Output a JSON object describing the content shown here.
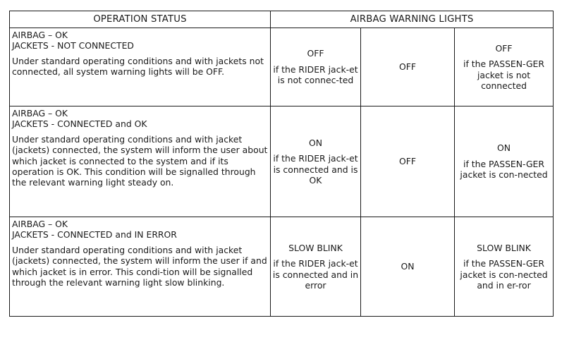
{
  "header": {
    "operation_status": "OPERATION STATUS",
    "airbag_warning_lights": "AIRBAG WARNING LIGHTS"
  },
  "rows": [
    {
      "status_line1": "AIRBAG – OK",
      "status_line2": "JACKETS - NOT CONNECTED",
      "description": "Under standard operating conditions and with jackets not connected, all system warning lights will be OFF.",
      "rider_state": "OFF",
      "rider_note": "if the RIDER jack-et is not connec-ted",
      "middle_state": "OFF",
      "passenger_state": "OFF",
      "passenger_note": "if the PASSEN-GER jacket is not connected"
    },
    {
      "status_line1": "AIRBAG – OK",
      "status_line2": "JACKETS - CONNECTED and OK",
      "description": "Under standard operating conditions and with jacket (jackets) connected, the system will inform the user about which jacket is connected to the system and if its operation is OK. This condition will be signalled through the relevant warning light steady on.",
      "rider_state": "ON",
      "rider_note": "if the RIDER jack-et is connected and is OK",
      "middle_state": "OFF",
      "passenger_state": "ON",
      "passenger_note": "if the PASSEN-GER jacket is con-nected"
    },
    {
      "status_line1": "AIRBAG – OK",
      "status_line2": "JACKETS - CONNECTED and IN ERROR",
      "description": "Under standard operating conditions and with jacket (jackets) connected, the system will inform the user if and which jacket is in error. This condi-tion will be signalled through the relevant warning light slow blinking.",
      "rider_state": "SLOW BLINK",
      "rider_note": "if the RIDER jack-et is connected and in error",
      "middle_state": "ON",
      "passenger_state": "SLOW BLINK",
      "passenger_note": "if the PASSEN-GER jacket is con-nected and in er-ror"
    }
  ]
}
